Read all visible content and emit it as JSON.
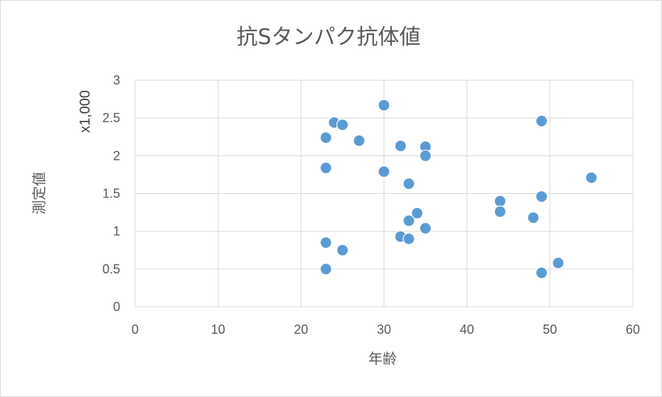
{
  "chart_data": {
    "type": "scatter",
    "title": "抗Sタンパク抗体値",
    "xlabel": "年齢",
    "ylabel": "測定値",
    "y_units": "x1,000",
    "xlim": [
      0,
      60
    ],
    "ylim": [
      0,
      3
    ],
    "x_ticks": [
      "0",
      "10",
      "20",
      "30",
      "40",
      "50",
      "60"
    ],
    "y_ticks": [
      "0",
      "0.5",
      "1",
      "1.5",
      "2",
      "2.5",
      "3"
    ],
    "grid": true,
    "legend": "none",
    "marker_color": "#5b9bd5",
    "points": [
      {
        "x": 23,
        "y": 2.24
      },
      {
        "x": 24,
        "y": 2.44
      },
      {
        "x": 25,
        "y": 2.41
      },
      {
        "x": 27,
        "y": 2.2
      },
      {
        "x": 30,
        "y": 2.67
      },
      {
        "x": 32,
        "y": 2.13
      },
      {
        "x": 35,
        "y": 2.12
      },
      {
        "x": 35,
        "y": 2.0
      },
      {
        "x": 23,
        "y": 1.84
      },
      {
        "x": 30,
        "y": 1.79
      },
      {
        "x": 33,
        "y": 1.63
      },
      {
        "x": 34,
        "y": 1.24
      },
      {
        "x": 33,
        "y": 1.14
      },
      {
        "x": 35,
        "y": 1.04
      },
      {
        "x": 32,
        "y": 0.93
      },
      {
        "x": 33,
        "y": 0.9
      },
      {
        "x": 23,
        "y": 0.85
      },
      {
        "x": 25,
        "y": 0.75
      },
      {
        "x": 23,
        "y": 0.5
      },
      {
        "x": 44,
        "y": 1.4
      },
      {
        "x": 44,
        "y": 1.26
      },
      {
        "x": 48,
        "y": 1.18
      },
      {
        "x": 49,
        "y": 2.46
      },
      {
        "x": 49,
        "y": 1.46
      },
      {
        "x": 49,
        "y": 0.45
      },
      {
        "x": 51,
        "y": 0.58
      },
      {
        "x": 55,
        "y": 1.71
      }
    ]
  }
}
